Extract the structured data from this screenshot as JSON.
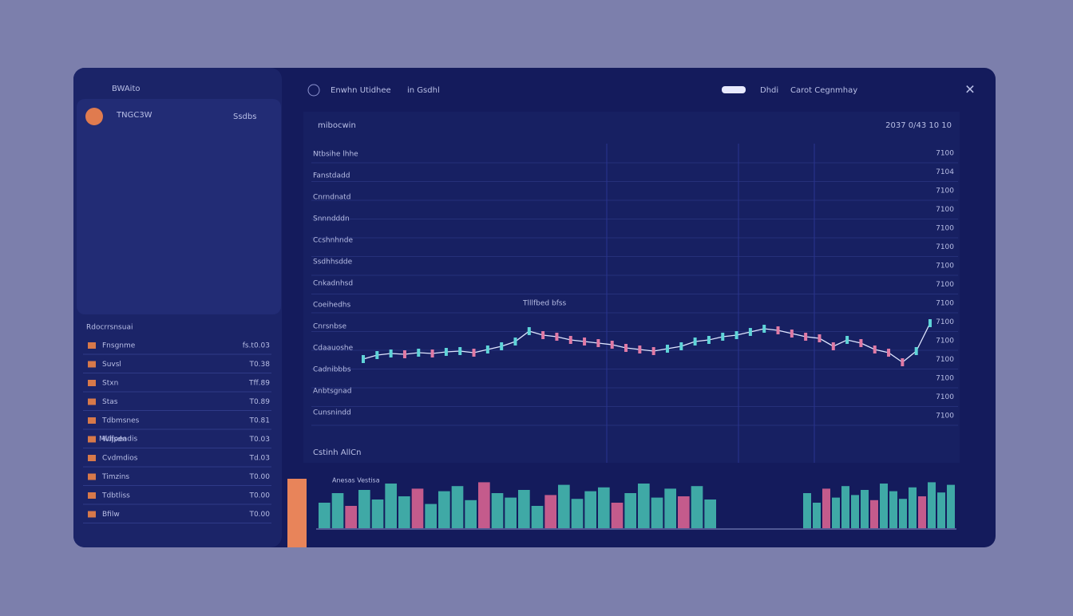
{
  "header": {
    "brand": "BWAito",
    "tab1": "Enwhn Utidhee",
    "tab2": "in Gsdhl",
    "menu1": "Dhdi",
    "menu2": "Carot Cegnmhay"
  },
  "sidebar": {
    "account": "TNGC3W",
    "account_badge": "Ssdbs",
    "sections": [
      "Rdocrrsnsuai",
      "Mldjpeadis"
    ],
    "rows": [
      [
        "Fnsgnme",
        "fs.t0.03"
      ],
      [
        "Suvsl",
        "T0.38"
      ],
      [
        "Stxn",
        "Tff.89"
      ],
      [
        "Stas",
        "T0.89"
      ],
      [
        "Tdbmsnes",
        "T0.81"
      ],
      [
        "Wifsdn",
        "T0.03"
      ],
      [
        "Cvdmdios",
        "Td.03"
      ],
      [
        "Timzins",
        "T0.00"
      ],
      [
        "Tdbtliss",
        "T0.00"
      ],
      [
        "Bfilw",
        "T0.00"
      ]
    ]
  },
  "chart": {
    "title": "mibocwin",
    "date": "2037 0/43 10 10",
    "annotation": "Tlllfbed bfss",
    "footer": "Cstinh AllCn",
    "volume_label": "Anesas Vestisa",
    "y_labels": [
      "7100",
      "7104",
      "7100",
      "7100",
      "7100",
      "7100",
      "7100",
      "7100",
      "7100",
      "7100",
      "7100",
      "7100",
      "7100",
      "7100",
      "7100"
    ],
    "left_labels": [
      "Ntbsihe lhhe",
      "Fanstdadd",
      "Cnrndnatd",
      "Snnndddn",
      "Ccshnhnde",
      "Ssdhhsdde",
      "Cnkadnhsd",
      "Coeihedhs",
      "Cnrsnbse",
      "Cdaauoshe",
      "Cadnibbbs",
      "Anbtsgnad",
      "Cunsnindd"
    ],
    "prices": [
      50,
      55,
      57,
      56,
      58,
      57,
      59,
      60,
      58,
      62,
      66,
      72,
      85,
      80,
      78,
      74,
      72,
      70,
      68,
      64,
      62,
      60,
      63,
      66,
      72,
      74,
      78,
      80,
      84,
      88,
      86,
      82,
      78,
      76,
      66,
      74,
      70,
      62,
      58,
      46,
      60,
      95
    ],
    "volumes": [
      40,
      55,
      35,
      60,
      45,
      70,
      50,
      62,
      38,
      58,
      66,
      44,
      72,
      55,
      48,
      60,
      35,
      52,
      68,
      46,
      58,
      64,
      40,
      55,
      70,
      48,
      62,
      50,
      66,
      45
    ],
    "volumes2": [
      55,
      40,
      62,
      48,
      66,
      52,
      60,
      44,
      70,
      58,
      46,
      64,
      50,
      72,
      56,
      68
    ]
  }
}
